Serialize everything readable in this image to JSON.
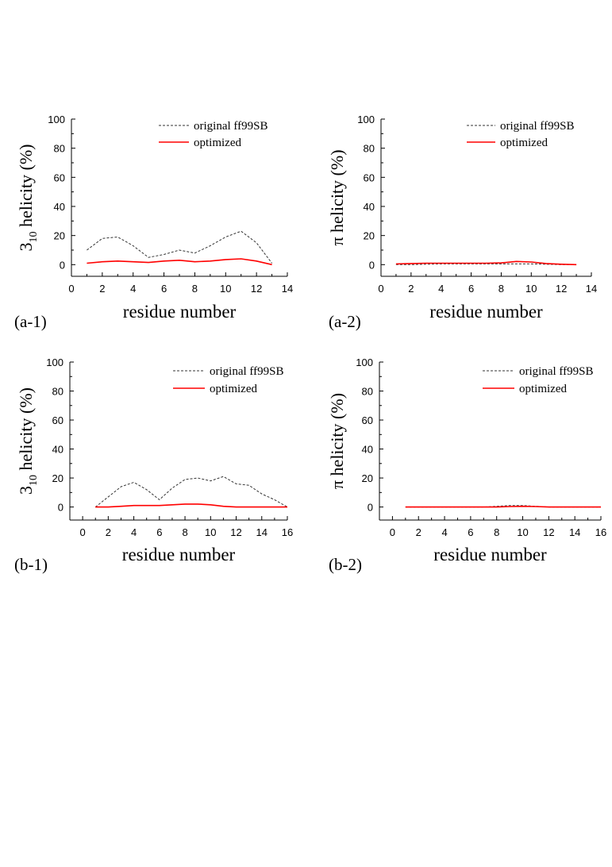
{
  "chart_data": [
    {
      "id": "a-1",
      "type": "line",
      "panel_label": "(a-1)",
      "xlabel": "residue number",
      "ylabel": "3",
      "ylabel_sub": "10",
      "ylabel_rest": " helicity (%)",
      "xlim": [
        0,
        14
      ],
      "ylim": [
        -8,
        100
      ],
      "xticks": [
        0,
        2,
        4,
        6,
        8,
        10,
        12,
        14
      ],
      "yticks": [
        0,
        20,
        40,
        60,
        80,
        100
      ],
      "legend_position": "top-right",
      "series": [
        {
          "name": "original ff99SB",
          "style": "dashed",
          "color": "#333333",
          "x": [
            1,
            2,
            3,
            4,
            5,
            6,
            7,
            8,
            9,
            10,
            11,
            12,
            13
          ],
          "y": [
            10,
            18,
            19,
            13,
            5,
            7,
            10,
            8,
            13,
            19,
            23,
            15,
            1
          ]
        },
        {
          "name": "optimized",
          "style": "solid",
          "color": "#ff0000",
          "x": [
            1,
            2,
            3,
            4,
            5,
            6,
            7,
            8,
            9,
            10,
            11,
            12,
            13
          ],
          "y": [
            1,
            2,
            2.5,
            2,
            1.5,
            2.5,
            3,
            2,
            2.5,
            3.5,
            4,
            2.5,
            0
          ]
        }
      ]
    },
    {
      "id": "a-2",
      "type": "line",
      "panel_label": "(a-2)",
      "xlabel": "residue number",
      "ylabel": "π helicity (%)",
      "xlim": [
        0,
        14
      ],
      "ylim": [
        -8,
        100
      ],
      "xticks": [
        0,
        2,
        4,
        6,
        8,
        10,
        12,
        14
      ],
      "yticks": [
        0,
        20,
        40,
        60,
        80,
        100
      ],
      "legend_position": "top-right",
      "series": [
        {
          "name": "original ff99SB",
          "style": "dashed",
          "color": "#333333",
          "x": [
            1,
            2,
            3,
            4,
            5,
            6,
            7,
            8,
            9,
            10,
            11,
            12,
            13
          ],
          "y": [
            0,
            0,
            0.3,
            0.5,
            0.5,
            0.5,
            0.5,
            0.5,
            0.5,
            0.5,
            0.3,
            0,
            0
          ]
        },
        {
          "name": "optimized",
          "style": "solid",
          "color": "#ff0000",
          "x": [
            1,
            2,
            3,
            4,
            5,
            6,
            7,
            8,
            9,
            10,
            11,
            12,
            13
          ],
          "y": [
            0.5,
            0.8,
            1,
            1,
            1,
            1,
            1,
            1.2,
            2.2,
            1.8,
            0.8,
            0.3,
            0
          ]
        }
      ]
    },
    {
      "id": "b-1",
      "type": "line",
      "panel_label": "(b-1)",
      "xlabel": "residue number",
      "ylabel": "3",
      "ylabel_sub": "10",
      "ylabel_rest": " helicity (%)",
      "xlim": [
        -1,
        16
      ],
      "ylim": [
        -9,
        100
      ],
      "xticks": [
        0,
        2,
        4,
        6,
        8,
        10,
        12,
        14,
        16
      ],
      "yticks": [
        0,
        20,
        40,
        60,
        80,
        100
      ],
      "legend_position": "top-right",
      "series": [
        {
          "name": "original ff99SB",
          "style": "dashed",
          "color": "#333333",
          "x": [
            1,
            2,
            3,
            4,
            5,
            6,
            7,
            8,
            9,
            10,
            11,
            12,
            13,
            14,
            15,
            16
          ],
          "y": [
            0,
            7,
            14,
            17,
            12,
            5,
            13,
            19,
            20,
            18,
            21,
            16,
            15,
            9,
            5,
            0
          ]
        },
        {
          "name": "optimized",
          "style": "solid",
          "color": "#ff0000",
          "x": [
            1,
            2,
            3,
            4,
            5,
            6,
            7,
            8,
            9,
            10,
            11,
            12,
            13,
            14,
            15,
            16
          ],
          "y": [
            0,
            0,
            0.5,
            1,
            1,
            1,
            1.5,
            2,
            2,
            1.5,
            0.5,
            0,
            0,
            0,
            0,
            0
          ]
        }
      ]
    },
    {
      "id": "b-2",
      "type": "line",
      "panel_label": "(b-2)",
      "xlabel": "residue number",
      "ylabel": "π helicity (%)",
      "xlim": [
        -1,
        16
      ],
      "ylim": [
        -9,
        100
      ],
      "xticks": [
        0,
        2,
        4,
        6,
        8,
        10,
        12,
        14,
        16
      ],
      "yticks": [
        0,
        20,
        40,
        60,
        80,
        100
      ],
      "legend_position": "top-right",
      "series": [
        {
          "name": "original ff99SB",
          "style": "dashed",
          "color": "#333333",
          "x": [
            1,
            2,
            3,
            4,
            5,
            6,
            7,
            8,
            9,
            10,
            11,
            12,
            13,
            14,
            15,
            16
          ],
          "y": [
            0,
            0,
            0,
            0,
            0,
            0,
            0,
            0.5,
            1,
            1,
            0.5,
            0,
            0,
            0,
            0,
            0
          ]
        },
        {
          "name": "optimized",
          "style": "solid",
          "color": "#ff0000",
          "x": [
            1,
            2,
            3,
            4,
            5,
            6,
            7,
            8,
            9,
            10,
            11,
            12,
            13,
            14,
            15,
            16
          ],
          "y": [
            0,
            0,
            0,
            0,
            0,
            0,
            0,
            0,
            0.3,
            0.5,
            0.3,
            0,
            0,
            0,
            0,
            0
          ]
        }
      ]
    }
  ]
}
